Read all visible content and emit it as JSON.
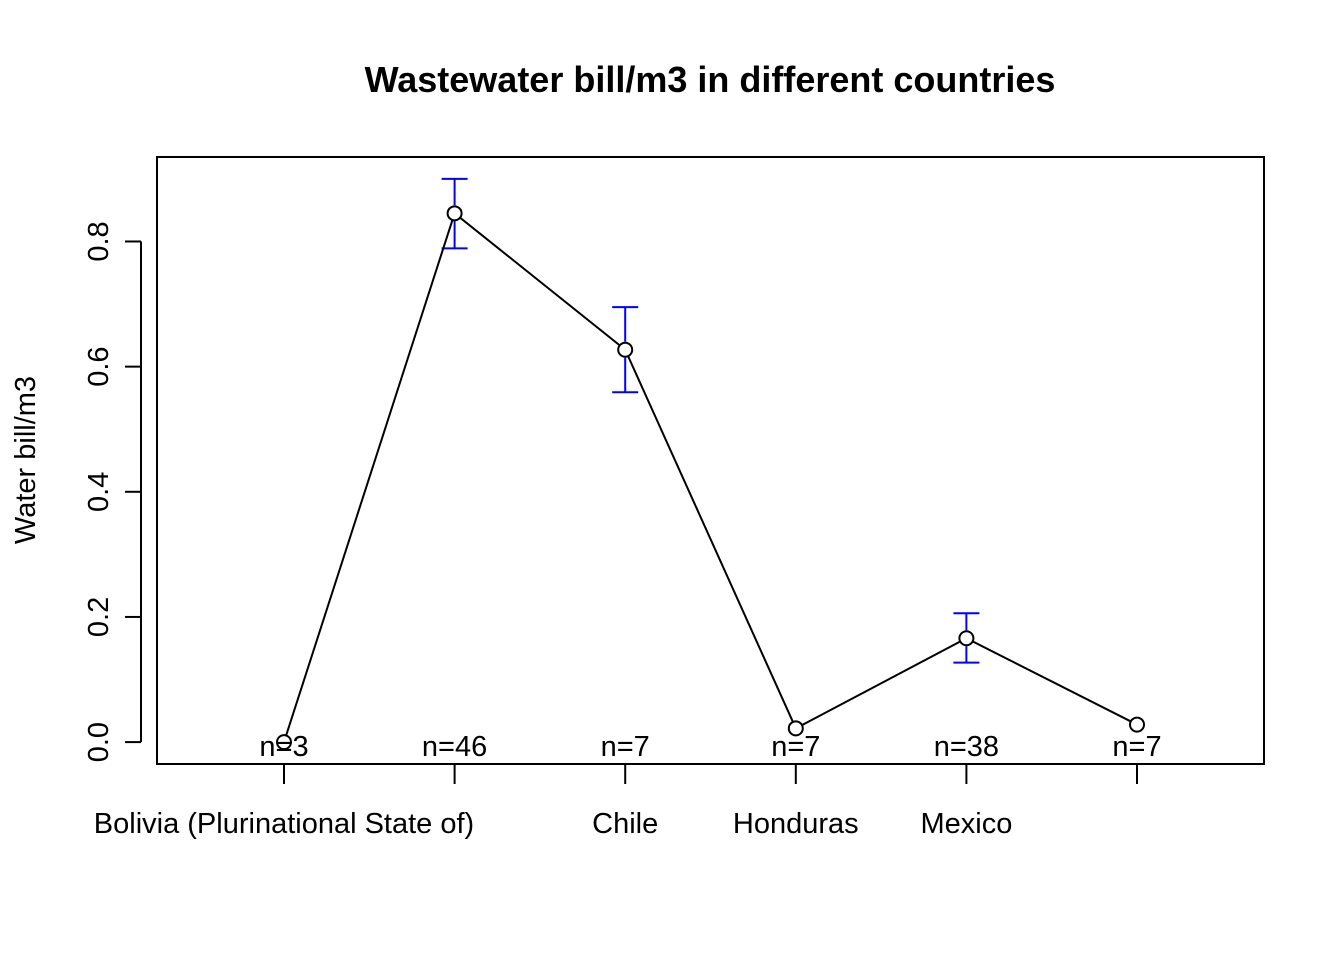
{
  "chart_data": {
    "type": "line",
    "title": "Wastewater bill/m3 in different countries",
    "xlabel": "",
    "ylabel": "Water bill/m3",
    "categories": [
      "Bolivia (Plurinational State of)",
      "",
      "Chile",
      "Honduras",
      "Mexico",
      ""
    ],
    "series": [
      {
        "values": [
          0.0,
          0.845,
          0.627,
          0.022,
          0.166,
          0.028
        ],
        "error_upper": [
          null,
          0.9,
          0.695,
          null,
          0.206,
          null
        ],
        "error_lower": [
          null,
          0.789,
          0.559,
          null,
          0.127,
          null
        ],
        "counts": [
          "n=3",
          "n=46",
          "n=7",
          "n=7",
          "n=38",
          "n=7"
        ]
      }
    ],
    "ylim": [
      -0.035,
      0.935
    ],
    "yticks": [
      0.0,
      0.2,
      0.4,
      0.6,
      0.8
    ],
    "ytick_labels": [
      "0.0",
      "0.2",
      "0.4",
      "0.6",
      "0.8"
    ],
    "grid": false,
    "colors": {
      "line": "#000000",
      "error_bars": "#0000ff"
    }
  }
}
